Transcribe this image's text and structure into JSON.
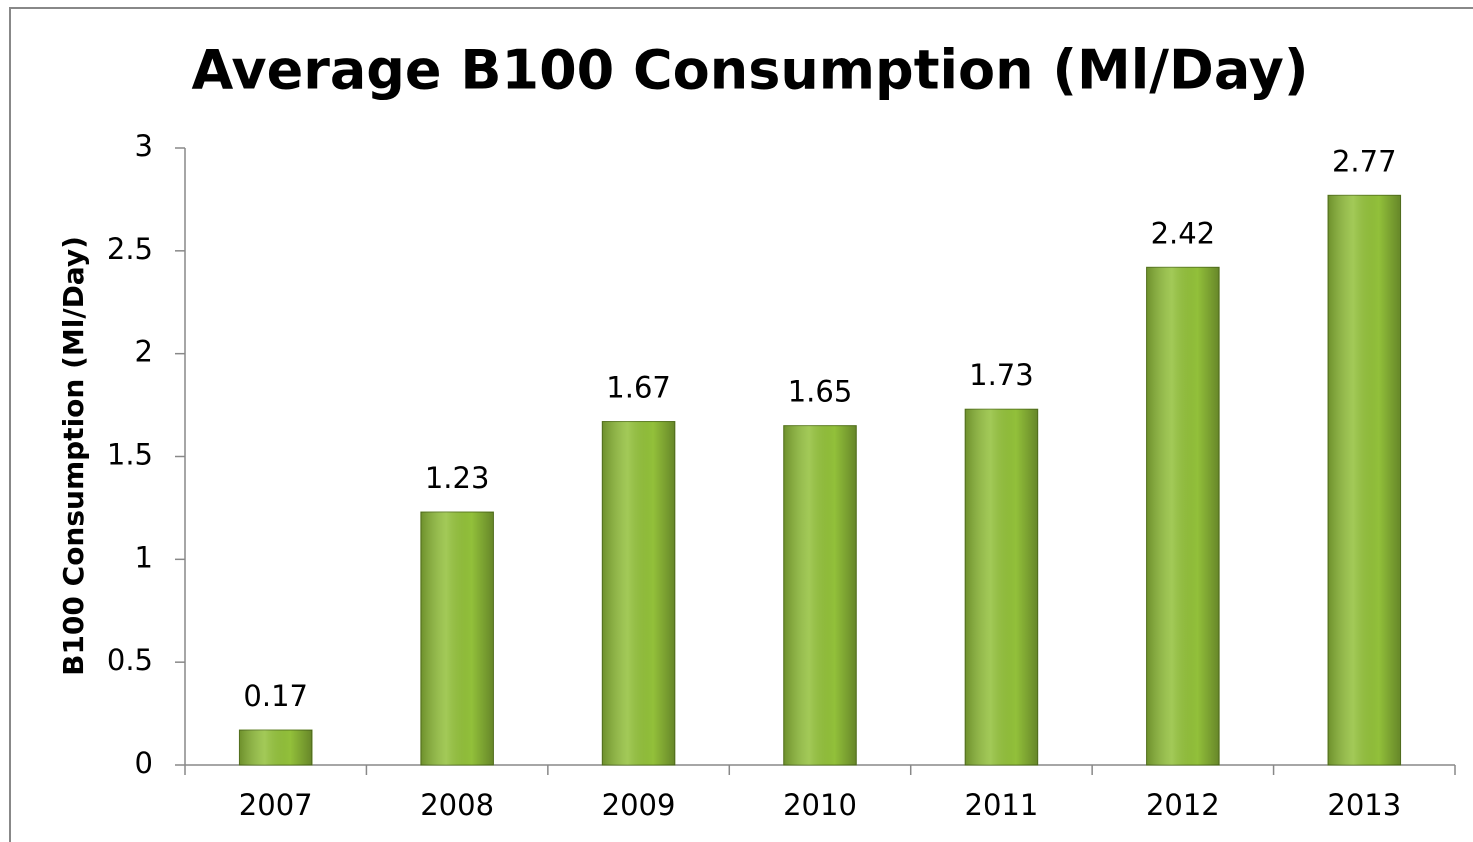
{
  "chart_data": {
    "type": "bar",
    "title": "Average B100 Consumption (Ml/Day)",
    "y_label": "B100 Consumption (Ml/Day)",
    "categories": [
      "2007",
      "2008",
      "2009",
      "2010",
      "2011",
      "2012",
      "2013"
    ],
    "values": [
      0.17,
      1.23,
      1.67,
      1.65,
      1.73,
      2.42,
      2.77
    ],
    "color": "#92c03a",
    "ylim": [
      0,
      3
    ],
    "yticks": [
      0,
      0.5,
      1,
      1.5,
      2,
      2.5,
      3
    ],
    "grid": false
  }
}
